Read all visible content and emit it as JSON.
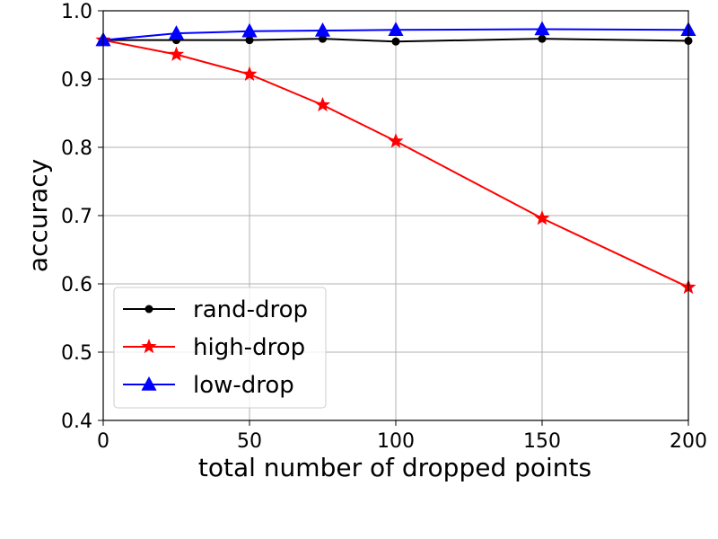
{
  "chart_data": {
    "type": "line",
    "title": "",
    "xlabel": "total number of dropped points",
    "ylabel": "accuracy",
    "xlim": [
      0,
      200
    ],
    "ylim": [
      0.4,
      1.0
    ],
    "xticks": [
      0,
      50,
      100,
      150,
      200
    ],
    "yticks": [
      0.4,
      0.5,
      0.6,
      0.7,
      0.8,
      0.9,
      1.0
    ],
    "grid": true,
    "legend_position": "lower-left",
    "series": [
      {
        "name": "rand-drop",
        "color": "#000000",
        "marker": "circle",
        "x": [
          0,
          25,
          50,
          75,
          100,
          150,
          200
        ],
        "y": [
          0.957,
          0.957,
          0.957,
          0.959,
          0.955,
          0.959,
          0.956
        ]
      },
      {
        "name": "high-drop",
        "color": "#ff0000",
        "marker": "star",
        "x": [
          0,
          25,
          50,
          75,
          100,
          150,
          200
        ],
        "y": [
          0.957,
          0.936,
          0.907,
          0.862,
          0.809,
          0.696,
          0.595
        ]
      },
      {
        "name": "low-drop",
        "color": "#0000ff",
        "marker": "triangle",
        "x": [
          0,
          25,
          50,
          75,
          100,
          150,
          200
        ],
        "y": [
          0.957,
          0.967,
          0.97,
          0.971,
          0.972,
          0.973,
          0.972
        ]
      }
    ]
  }
}
